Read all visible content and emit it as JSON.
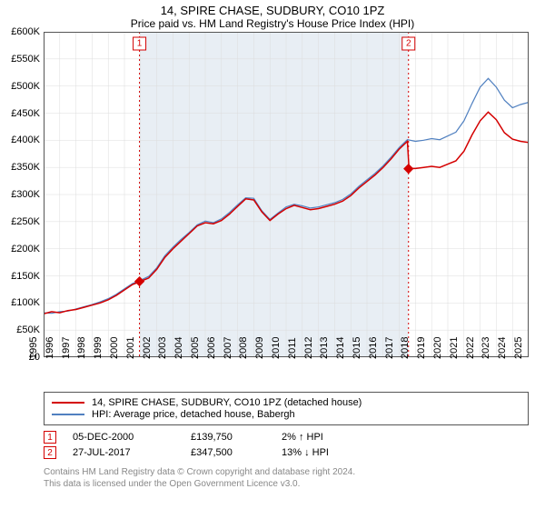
{
  "title": "14, SPIRE CHASE, SUDBURY, CO10 1PZ",
  "subtitle": "Price paid vs. HM Land Registry's House Price Index (HPI)",
  "chart": {
    "background_color": "#ffffff",
    "grid_color": "#dcdcdc",
    "shade_color": "#e8eef4",
    "border_color": "#555555",
    "y_axis": {
      "min": 0,
      "max": 600000,
      "step": 50000,
      "tick_labels": [
        "£0",
        "£50K",
        "£100K",
        "£150K",
        "£200K",
        "£250K",
        "£300K",
        "£350K",
        "£400K",
        "£450K",
        "£500K",
        "£550K",
        "£600K"
      ],
      "fontsize": 11
    },
    "x_axis": {
      "ticks": [
        1995,
        1996,
        1997,
        1998,
        1999,
        2000,
        2001,
        2002,
        2003,
        2004,
        2005,
        2006,
        2007,
        2008,
        2009,
        2010,
        2011,
        2012,
        2013,
        2014,
        2015,
        2016,
        2017,
        2018,
        2019,
        2020,
        2021,
        2022,
        2023,
        2024,
        2025
      ],
      "fontsize": 11
    },
    "shade_range": [
      2000.93,
      2017.57
    ],
    "markers": [
      {
        "n": "1",
        "x": 2000.93,
        "y": 139750,
        "color": "#d40000"
      },
      {
        "n": "2",
        "x": 2017.57,
        "y": 347500,
        "color": "#d40000"
      }
    ],
    "series": [
      {
        "name": "14, SPIRE CHASE, SUDBURY, CO10 1PZ (detached house)",
        "color": "#d40000",
        "line_width": 1.5,
        "points": [
          [
            1995,
            80000
          ],
          [
            1995.5,
            84000
          ],
          [
            1996,
            82000
          ],
          [
            1996.5,
            86000
          ],
          [
            1997,
            88000
          ],
          [
            1997.5,
            92000
          ],
          [
            1998,
            96000
          ],
          [
            1998.5,
            100000
          ],
          [
            1999,
            106000
          ],
          [
            1999.5,
            114000
          ],
          [
            2000,
            124000
          ],
          [
            2000.5,
            134000
          ],
          [
            2001,
            140000
          ],
          [
            2001.5,
            146000
          ],
          [
            2002,
            162000
          ],
          [
            2002.5,
            184000
          ],
          [
            2003,
            200000
          ],
          [
            2003.5,
            214000
          ],
          [
            2004,
            228000
          ],
          [
            2004.5,
            242000
          ],
          [
            2005,
            248000
          ],
          [
            2005.5,
            246000
          ],
          [
            2006,
            252000
          ],
          [
            2006.5,
            264000
          ],
          [
            2007,
            278000
          ],
          [
            2007.5,
            292000
          ],
          [
            2008,
            290000
          ],
          [
            2008.5,
            268000
          ],
          [
            2009,
            252000
          ],
          [
            2009.5,
            264000
          ],
          [
            2010,
            274000
          ],
          [
            2010.5,
            280000
          ],
          [
            2011,
            276000
          ],
          [
            2011.5,
            272000
          ],
          [
            2012,
            274000
          ],
          [
            2012.5,
            278000
          ],
          [
            2013,
            282000
          ],
          [
            2013.5,
            288000
          ],
          [
            2014,
            298000
          ],
          [
            2014.5,
            312000
          ],
          [
            2015,
            324000
          ],
          [
            2015.5,
            336000
          ],
          [
            2016,
            350000
          ],
          [
            2016.5,
            366000
          ],
          [
            2017,
            384000
          ],
          [
            2017.5,
            398000
          ],
          [
            2017.6,
            348000
          ],
          [
            2018,
            348000
          ],
          [
            2018.5,
            350000
          ],
          [
            2019,
            352000
          ],
          [
            2019.5,
            350000
          ],
          [
            2020,
            356000
          ],
          [
            2020.5,
            362000
          ],
          [
            2021,
            380000
          ],
          [
            2021.5,
            410000
          ],
          [
            2022,
            436000
          ],
          [
            2022.5,
            452000
          ],
          [
            2023,
            438000
          ],
          [
            2023.5,
            414000
          ],
          [
            2024,
            402000
          ],
          [
            2024.5,
            398000
          ],
          [
            2025,
            396000
          ]
        ]
      },
      {
        "name": "HPI: Average price, detached house, Babergh",
        "color": "#5080c0",
        "line_width": 1.2,
        "points": [
          [
            1995,
            82000
          ],
          [
            1995.5,
            81000
          ],
          [
            1996,
            84000
          ],
          [
            1996.5,
            85000
          ],
          [
            1997,
            89000
          ],
          [
            1997.5,
            93000
          ],
          [
            1998,
            97000
          ],
          [
            1998.5,
            102000
          ],
          [
            1999,
            108000
          ],
          [
            1999.5,
            116000
          ],
          [
            2000,
            126000
          ],
          [
            2000.5,
            136000
          ],
          [
            2001,
            142000
          ],
          [
            2001.5,
            149000
          ],
          [
            2002,
            165000
          ],
          [
            2002.5,
            187000
          ],
          [
            2003,
            203000
          ],
          [
            2003.5,
            217000
          ],
          [
            2004,
            230000
          ],
          [
            2004.5,
            244000
          ],
          [
            2005,
            251000
          ],
          [
            2005.5,
            248000
          ],
          [
            2006,
            255000
          ],
          [
            2006.5,
            267000
          ],
          [
            2007,
            281000
          ],
          [
            2007.5,
            294000
          ],
          [
            2008,
            293000
          ],
          [
            2008.5,
            270000
          ],
          [
            2009,
            254000
          ],
          [
            2009.5,
            266000
          ],
          [
            2010,
            277000
          ],
          [
            2010.5,
            282000
          ],
          [
            2011,
            279000
          ],
          [
            2011.5,
            275000
          ],
          [
            2012,
            277000
          ],
          [
            2012.5,
            281000
          ],
          [
            2013,
            285000
          ],
          [
            2013.5,
            291000
          ],
          [
            2014,
            301000
          ],
          [
            2014.5,
            315000
          ],
          [
            2015,
            327000
          ],
          [
            2015.5,
            339000
          ],
          [
            2016,
            353000
          ],
          [
            2016.5,
            369000
          ],
          [
            2017,
            387000
          ],
          [
            2017.5,
            401000
          ],
          [
            2018,
            398000
          ],
          [
            2018.5,
            400000
          ],
          [
            2019,
            403000
          ],
          [
            2019.5,
            401000
          ],
          [
            2020,
            408000
          ],
          [
            2020.5,
            415000
          ],
          [
            2021,
            436000
          ],
          [
            2021.5,
            468000
          ],
          [
            2022,
            498000
          ],
          [
            2022.5,
            514000
          ],
          [
            2023,
            498000
          ],
          [
            2023.5,
            474000
          ],
          [
            2024,
            460000
          ],
          [
            2024.5,
            466000
          ],
          [
            2025,
            470000
          ]
        ]
      }
    ]
  },
  "legend": {
    "rows": [
      {
        "label": "14, SPIRE CHASE, SUDBURY, CO10 1PZ (detached house)",
        "color": "#d40000"
      },
      {
        "label": "HPI: Average price, detached house, Babergh",
        "color": "#5080c0"
      }
    ]
  },
  "transactions": [
    {
      "n": "1",
      "date": "05-DEC-2000",
      "price": "£139,750",
      "pct": "2% ↑ HPI",
      "color": "#d40000"
    },
    {
      "n": "2",
      "date": "27-JUL-2017",
      "price": "£347,500",
      "pct": "13% ↓ HPI",
      "color": "#d40000"
    }
  ],
  "footer_line1": "Contains HM Land Registry data © Crown copyright and database right 2024.",
  "footer_line2": "This data is licensed under the Open Government Licence v3.0."
}
